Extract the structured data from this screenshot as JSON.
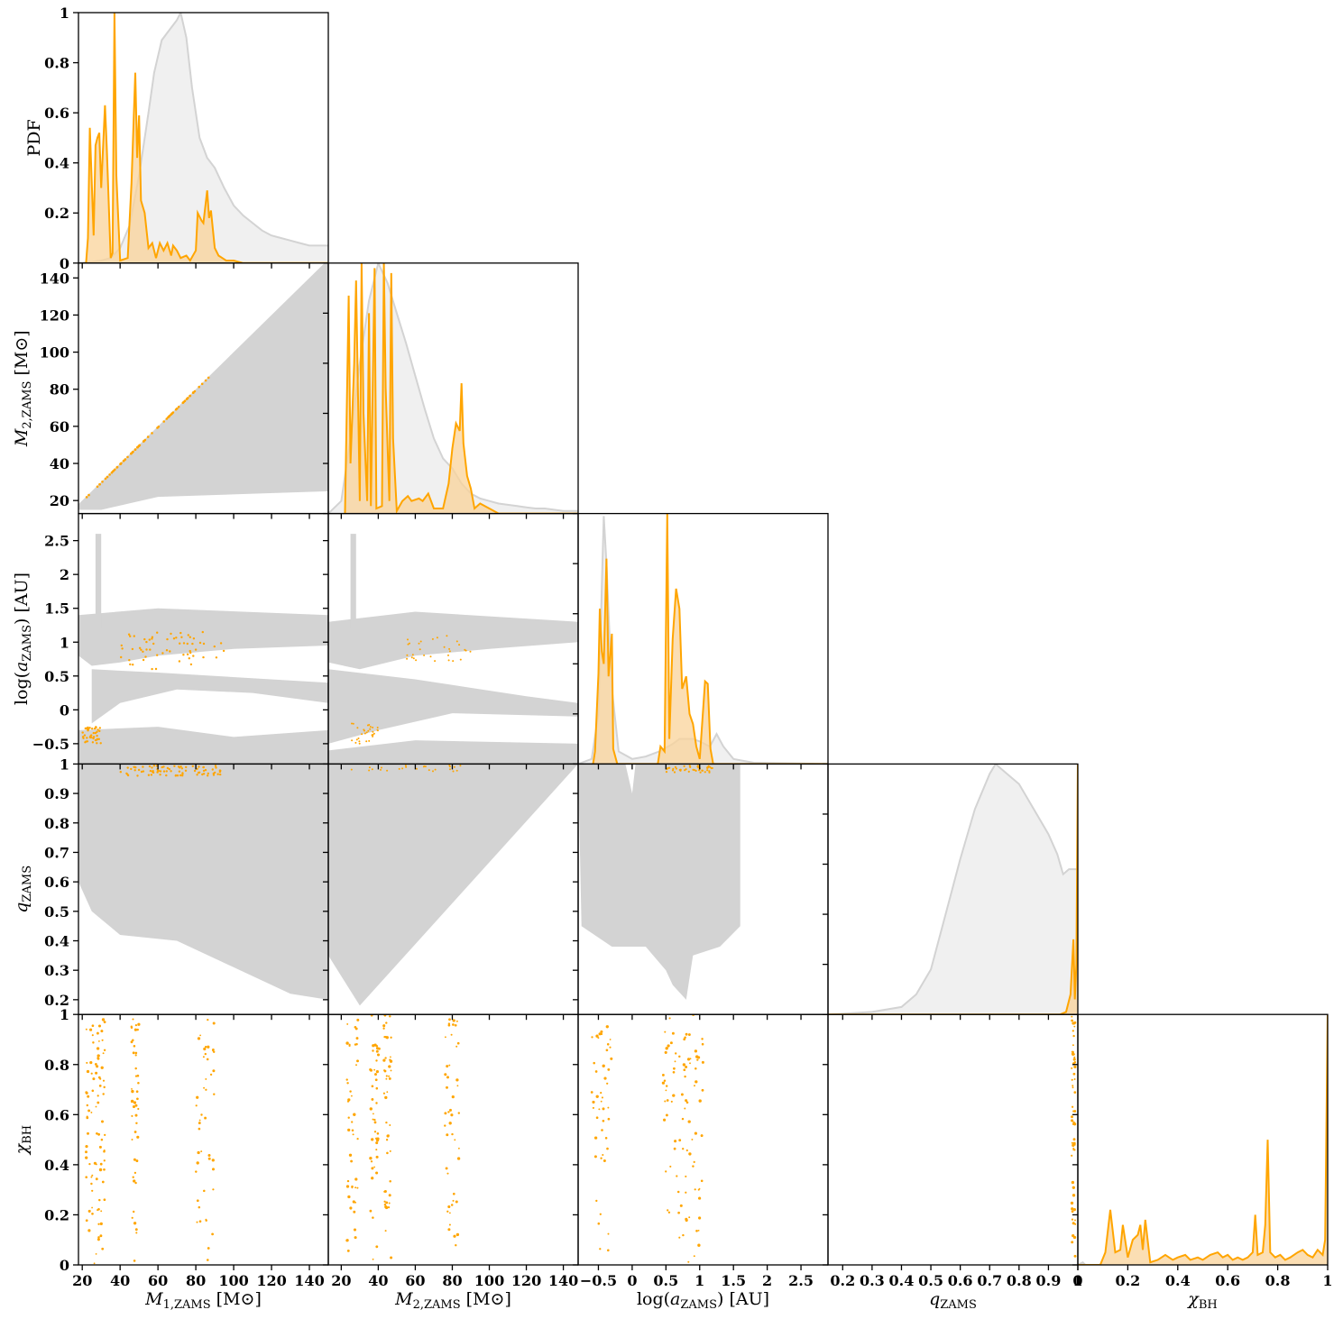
{
  "chart_data": {
    "type": "corner",
    "colors": {
      "population": "#d3d3d3",
      "population_fill": "#f0f0f0",
      "selected": "#ffa500",
      "selected_fill": "#f9d39a"
    },
    "variables": [
      {
        "key": "m1",
        "label": "M1,ZAMS [M⊙]",
        "range": [
          18,
          150
        ],
        "ticks": [
          20,
          40,
          60,
          80,
          100,
          120,
          140
        ]
      },
      {
        "key": "m2",
        "label": "M2,ZAMS [M⊙]",
        "range": [
          13,
          148
        ],
        "ticks": [
          20,
          40,
          60,
          80,
          100,
          120,
          140
        ]
      },
      {
        "key": "loga",
        "label": "log(aZAMS) [AU]",
        "range": [
          -0.8,
          2.9
        ],
        "ticks": [
          -0.5,
          0.0,
          0.5,
          1.0,
          1.5,
          2.0,
          2.5
        ]
      },
      {
        "key": "q",
        "label": "qZAMS",
        "range": [
          0.15,
          1.0
        ],
        "ticks": [
          0.2,
          0.3,
          0.4,
          0.5,
          0.6,
          0.7,
          0.8,
          0.9,
          1.0
        ]
      },
      {
        "key": "chi",
        "label": "χBH",
        "range": [
          0.0,
          1.0
        ],
        "ticks": [
          0.0,
          0.2,
          0.4,
          0.6,
          0.8,
          1.0
        ]
      }
    ],
    "diag_ylabel": "PDF",
    "diag_yticks": [
      0.0,
      0.2,
      0.4,
      0.6,
      0.8,
      1.0
    ],
    "marginals": {
      "m1": {
        "population": [
          [
            18,
            0
          ],
          [
            25,
            0.005
          ],
          [
            30,
            0.01
          ],
          [
            35,
            0.02
          ],
          [
            40,
            0.06
          ],
          [
            45,
            0.15
          ],
          [
            50,
            0.35
          ],
          [
            55,
            0.6
          ],
          [
            58,
            0.76
          ],
          [
            62,
            0.89
          ],
          [
            66,
            0.93
          ],
          [
            70,
            0.97
          ],
          [
            72,
            1.0
          ],
          [
            75,
            0.9
          ],
          [
            78,
            0.7
          ],
          [
            82,
            0.5
          ],
          [
            86,
            0.42
          ],
          [
            90,
            0.38
          ],
          [
            95,
            0.3
          ],
          [
            100,
            0.23
          ],
          [
            105,
            0.19
          ],
          [
            110,
            0.16
          ],
          [
            115,
            0.13
          ],
          [
            120,
            0.11
          ],
          [
            125,
            0.1
          ],
          [
            130,
            0.09
          ],
          [
            135,
            0.08
          ],
          [
            140,
            0.07
          ],
          [
            145,
            0.07
          ],
          [
            150,
            0.07
          ]
        ],
        "selected": [
          [
            22,
            0
          ],
          [
            23,
            0.1
          ],
          [
            24,
            0.54
          ],
          [
            26,
            0.11
          ],
          [
            27,
            0.47
          ],
          [
            28,
            0.5
          ],
          [
            29,
            0.52
          ],
          [
            30,
            0.3
          ],
          [
            32,
            0.63
          ],
          [
            33,
            0.45
          ],
          [
            35,
            0.02
          ],
          [
            36,
            0.04
          ],
          [
            37,
            1.0
          ],
          [
            38,
            0.35
          ],
          [
            40,
            0.01
          ],
          [
            44,
            0.02
          ],
          [
            46,
            0.32
          ],
          [
            48,
            0.76
          ],
          [
            49,
            0.42
          ],
          [
            50,
            0.59
          ],
          [
            51,
            0.25
          ],
          [
            53,
            0.2
          ],
          [
            55,
            0.06
          ],
          [
            57,
            0.08
          ],
          [
            59,
            0.02
          ],
          [
            61,
            0.08
          ],
          [
            63,
            0.05
          ],
          [
            65,
            0.08
          ],
          [
            67,
            0.03
          ],
          [
            68,
            0.07
          ],
          [
            70,
            0.05
          ],
          [
            72,
            0.02
          ],
          [
            75,
            0.03
          ],
          [
            77,
            0.01
          ],
          [
            80,
            0.05
          ],
          [
            81,
            0.2
          ],
          [
            83,
            0.17
          ],
          [
            84,
            0.16
          ],
          [
            86,
            0.29
          ],
          [
            87,
            0.18
          ],
          [
            88,
            0.21
          ],
          [
            90,
            0.06
          ],
          [
            92,
            0.03
          ],
          [
            94,
            0.02
          ],
          [
            96,
            0.01
          ],
          [
            100,
            0.01
          ],
          [
            105,
            0.0
          ],
          [
            150,
            0
          ]
        ]
      },
      "m2": {
        "population": [
          [
            13,
            0
          ],
          [
            20,
            0.05
          ],
          [
            25,
            0.3
          ],
          [
            30,
            0.6
          ],
          [
            35,
            0.85
          ],
          [
            40,
            1.0
          ],
          [
            45,
            0.92
          ],
          [
            50,
            0.8
          ],
          [
            55,
            0.68
          ],
          [
            60,
            0.55
          ],
          [
            65,
            0.42
          ],
          [
            70,
            0.3
          ],
          [
            75,
            0.22
          ],
          [
            80,
            0.18
          ],
          [
            85,
            0.12
          ],
          [
            90,
            0.08
          ],
          [
            95,
            0.06
          ],
          [
            100,
            0.05
          ],
          [
            105,
            0.04
          ],
          [
            110,
            0.035
          ],
          [
            115,
            0.03
          ],
          [
            120,
            0.025
          ],
          [
            125,
            0.02
          ],
          [
            130,
            0.02
          ],
          [
            135,
            0.015
          ],
          [
            140,
            0.01
          ],
          [
            148,
            0.01
          ]
        ],
        "selected": [
          [
            22,
            0
          ],
          [
            24,
            0.87
          ],
          [
            25,
            0.2
          ],
          [
            27,
            0.6
          ],
          [
            28,
            0.93
          ],
          [
            30,
            0.05
          ],
          [
            31,
            1.0
          ],
          [
            32,
            0.4
          ],
          [
            34,
            0.05
          ],
          [
            35,
            0.8
          ],
          [
            36,
            0.03
          ],
          [
            38,
            0.98
          ],
          [
            39,
            0.02
          ],
          [
            42,
            0.03
          ],
          [
            43,
            1.0
          ],
          [
            44,
            0.5
          ],
          [
            46,
            0.05
          ],
          [
            47,
            0.96
          ],
          [
            48,
            0.3
          ],
          [
            50,
            0.01
          ],
          [
            53,
            0.05
          ],
          [
            56,
            0.07
          ],
          [
            58,
            0.05
          ],
          [
            62,
            0.06
          ],
          [
            64,
            0.05
          ],
          [
            67,
            0.08
          ],
          [
            70,
            0.02
          ],
          [
            75,
            0.02
          ],
          [
            78,
            0.12
          ],
          [
            80,
            0.26
          ],
          [
            82,
            0.36
          ],
          [
            84,
            0.33
          ],
          [
            85,
            0.52
          ],
          [
            86,
            0.28
          ],
          [
            88,
            0.15
          ],
          [
            90,
            0.1
          ],
          [
            92,
            0.02
          ],
          [
            95,
            0.04
          ],
          [
            100,
            0.02
          ],
          [
            105,
            0.0
          ],
          [
            148,
            0
          ]
        ]
      },
      "loga": {
        "population": [
          [
            -0.8,
            0
          ],
          [
            -0.6,
            0.02
          ],
          [
            -0.5,
            0.2
          ],
          [
            -0.45,
            0.7
          ],
          [
            -0.42,
            0.99
          ],
          [
            -0.38,
            0.8
          ],
          [
            -0.3,
            0.3
          ],
          [
            -0.2,
            0.05
          ],
          [
            0.0,
            0.02
          ],
          [
            0.2,
            0.03
          ],
          [
            0.4,
            0.05
          ],
          [
            0.6,
            0.08
          ],
          [
            0.7,
            0.1
          ],
          [
            0.9,
            0.1
          ],
          [
            1.0,
            0.09
          ],
          [
            1.15,
            0.07
          ],
          [
            1.25,
            0.12
          ],
          [
            1.35,
            0.07
          ],
          [
            1.5,
            0.02
          ],
          [
            1.8,
            0.005
          ],
          [
            2.9,
            0
          ]
        ],
        "selected": [
          [
            -0.58,
            0
          ],
          [
            -0.55,
            0.05
          ],
          [
            -0.5,
            0.36
          ],
          [
            -0.48,
            0.62
          ],
          [
            -0.45,
            0.45
          ],
          [
            -0.42,
            0.4
          ],
          [
            -0.38,
            0.82
          ],
          [
            -0.35,
            0.35
          ],
          [
            -0.3,
            0.52
          ],
          [
            -0.28,
            0.06
          ],
          [
            -0.22,
            0
          ],
          [
            0.38,
            0
          ],
          [
            0.42,
            0.07
          ],
          [
            0.48,
            0.05
          ],
          [
            0.52,
            1.0
          ],
          [
            0.55,
            0.1
          ],
          [
            0.6,
            0.5
          ],
          [
            0.65,
            0.7
          ],
          [
            0.7,
            0.62
          ],
          [
            0.74,
            0.3
          ],
          [
            0.8,
            0.35
          ],
          [
            0.85,
            0.2
          ],
          [
            0.9,
            0.16
          ],
          [
            0.95,
            0.07
          ],
          [
            1.0,
            0.02
          ],
          [
            1.08,
            0.33
          ],
          [
            1.12,
            0.32
          ],
          [
            1.16,
            0.06
          ],
          [
            1.2,
            0.0
          ],
          [
            2.9,
            0
          ]
        ]
      },
      "q": {
        "population": [
          [
            0.15,
            0
          ],
          [
            0.2,
            0.003
          ],
          [
            0.3,
            0.01
          ],
          [
            0.4,
            0.03
          ],
          [
            0.45,
            0.08
          ],
          [
            0.5,
            0.18
          ],
          [
            0.55,
            0.4
          ],
          [
            0.6,
            0.62
          ],
          [
            0.65,
            0.82
          ],
          [
            0.7,
            0.96
          ],
          [
            0.72,
            1.0
          ],
          [
            0.75,
            0.97
          ],
          [
            0.8,
            0.92
          ],
          [
            0.85,
            0.82
          ],
          [
            0.9,
            0.72
          ],
          [
            0.93,
            0.64
          ],
          [
            0.95,
            0.56
          ],
          [
            0.97,
            0.58
          ],
          [
            0.99,
            0.58
          ],
          [
            1.0,
            0.58
          ]
        ],
        "selected": [
          [
            0.15,
            0
          ],
          [
            0.94,
            0
          ],
          [
            0.96,
            0.01
          ],
          [
            0.975,
            0.08
          ],
          [
            0.985,
            0.3
          ],
          [
            0.99,
            0.06
          ],
          [
            0.995,
            0.2
          ],
          [
            1.0,
            1.0
          ]
        ]
      },
      "chi": {
        "population": [
          [
            0.0,
            0
          ],
          [
            0.02,
            0.01
          ],
          [
            0.03,
            0
          ],
          [
            1.0,
            0
          ]
        ],
        "selected": [
          [
            0.0,
            0
          ],
          [
            0.09,
            0
          ],
          [
            0.11,
            0.05
          ],
          [
            0.13,
            0.22
          ],
          [
            0.15,
            0.05
          ],
          [
            0.17,
            0.06
          ],
          [
            0.18,
            0.16
          ],
          [
            0.2,
            0.03
          ],
          [
            0.22,
            0.1
          ],
          [
            0.24,
            0.12
          ],
          [
            0.25,
            0.16
          ],
          [
            0.26,
            0.06
          ],
          [
            0.27,
            0.18
          ],
          [
            0.29,
            0.01
          ],
          [
            0.32,
            0.02
          ],
          [
            0.35,
            0.04
          ],
          [
            0.38,
            0.02
          ],
          [
            0.4,
            0.03
          ],
          [
            0.43,
            0.04
          ],
          [
            0.45,
            0.02
          ],
          [
            0.48,
            0.03
          ],
          [
            0.5,
            0.02
          ],
          [
            0.53,
            0.04
          ],
          [
            0.56,
            0.05
          ],
          [
            0.58,
            0.03
          ],
          [
            0.6,
            0.04
          ],
          [
            0.62,
            0.02
          ],
          [
            0.64,
            0.03
          ],
          [
            0.66,
            0.02
          ],
          [
            0.68,
            0.03
          ],
          [
            0.7,
            0.05
          ],
          [
            0.71,
            0.2
          ],
          [
            0.72,
            0.04
          ],
          [
            0.74,
            0.05
          ],
          [
            0.75,
            0.16
          ],
          [
            0.76,
            0.5
          ],
          [
            0.77,
            0.05
          ],
          [
            0.79,
            0.03
          ],
          [
            0.81,
            0.04
          ],
          [
            0.83,
            0.02
          ],
          [
            0.85,
            0.03
          ],
          [
            0.88,
            0.05
          ],
          [
            0.9,
            0.06
          ],
          [
            0.92,
            0.04
          ],
          [
            0.94,
            0.03
          ],
          [
            0.96,
            0.06
          ],
          [
            0.98,
            0.04
          ],
          [
            0.99,
            0.1
          ],
          [
            1.0,
            1.0
          ]
        ]
      }
    }
  }
}
